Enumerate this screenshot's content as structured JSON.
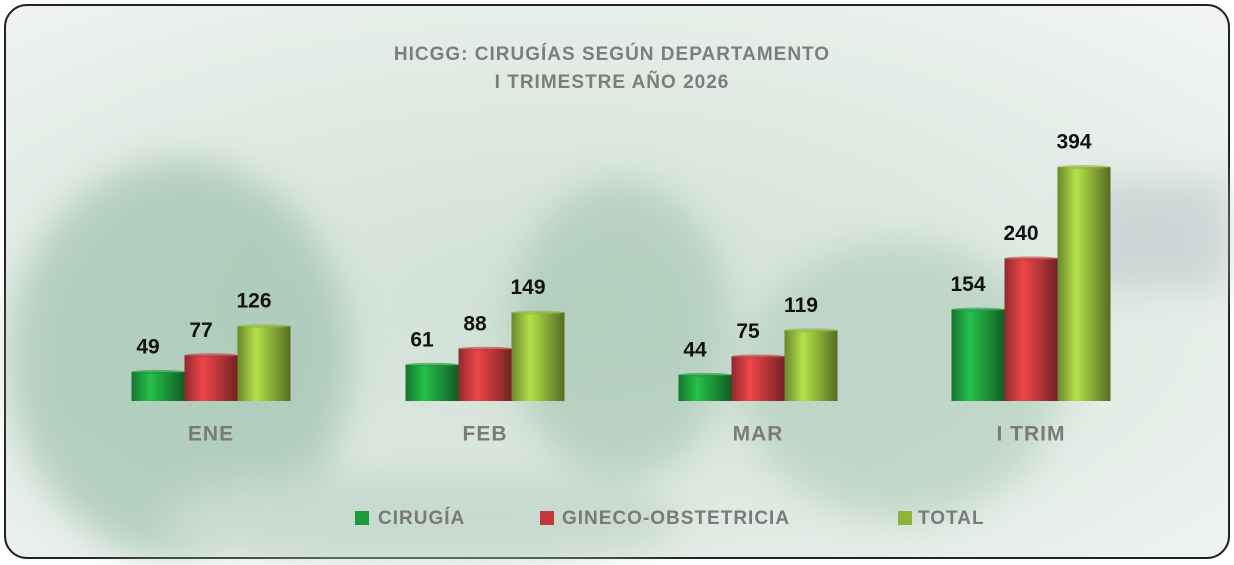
{
  "chart_data": {
    "type": "bar",
    "title": "HICGG: CIRUGÍAS SEGÚN DEPARTAMENTO",
    "subtitle": "I TRIMESTRE  AÑO 2026",
    "categories": [
      "ENE",
      "FEB",
      "MAR",
      "I TRIM"
    ],
    "series": [
      {
        "name": "CIRUGÍA",
        "color": "#1e9a3c",
        "values": [
          49,
          61,
          44,
          154
        ]
      },
      {
        "name": "GINECO-OBSTETRICIA",
        "color": "#c0383a",
        "values": [
          77,
          88,
          75,
          240
        ]
      },
      {
        "name": "TOTAL",
        "color": "#8fb43a",
        "values": [
          126,
          149,
          119,
          394
        ]
      }
    ]
  }
}
